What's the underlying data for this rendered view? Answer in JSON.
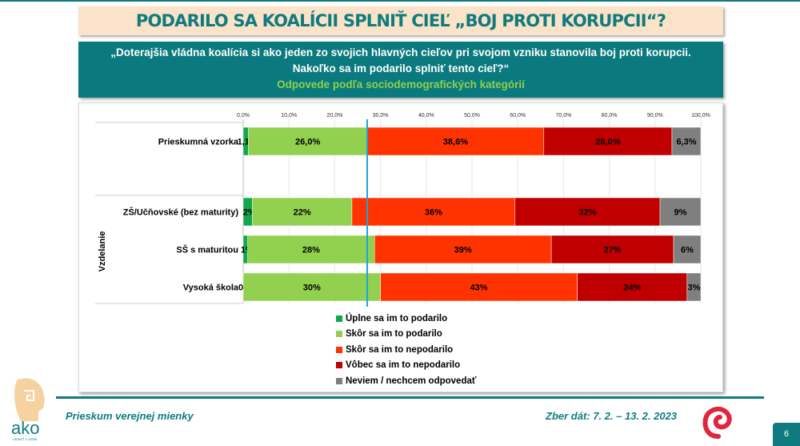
{
  "title": "PODARILO SA KOALÍCII SPLNIŤ CIEĽ „BOJ PROTI KORUPCII“?",
  "question_line1": "„Doterajšia vládna koalícia si ako jeden zo svojich hlavných cieľov pri svojom vzniku stanovila boj proti korupcii.",
  "question_line2": "Nakoľko sa im podarilo splniť tento cieľ?“",
  "subtitle": "Odpovede podľa sociodemografických kategórií",
  "footer": {
    "left": "Prieskum verejnej mienky",
    "right": "Zber dát: 7. 2. – 13. 2. 2023",
    "page": "6",
    "logo_text": "ako",
    "logo_tagline": "VEDIEŤ O SEBE"
  },
  "chart_data": {
    "type": "stacked-bar-horizontal",
    "xlim": [
      0,
      100
    ],
    "x_ticks": [
      "0,0%",
      "10,0%",
      "20,0%",
      "30,0%",
      "40,0%",
      "50,0%",
      "60,0%",
      "70,0%",
      "80,0%",
      "90,0%",
      "100,0%"
    ],
    "group_label": "Vzdelanie",
    "reference_line_value": 27.1,
    "legend_placement": "bottom",
    "series": [
      {
        "name": "Úplne sa im to podarilo",
        "color": "#12a84b"
      },
      {
        "name": "Skôr sa im to podarilo",
        "color": "#92d050"
      },
      {
        "name": "Skôr sa im to nepodarilo",
        "color": "#ff3300"
      },
      {
        "name": "Vôbec sa im to nepodarilo",
        "color": "#c00000"
      },
      {
        "name": "Neviem / nechcem odpovedať",
        "color": "#7f7f7f"
      }
    ],
    "rows": [
      {
        "label": "Prieskumná vzorka",
        "values": [
          1.1,
          26.0,
          38.6,
          28.0,
          6.3
        ],
        "labels": [
          "1,1%",
          "26,0%",
          "38,6%",
          "28,0%",
          "6,3%"
        ]
      },
      {
        "label": "ZŠ/Učňovské (bez maturity)",
        "values": [
          2,
          22,
          36,
          32,
          9
        ],
        "labels": [
          "2%",
          "22%",
          "36%",
          "32%",
          "9%"
        ]
      },
      {
        "label": "SŠ s maturitou",
        "values": [
          1,
          28,
          39,
          27,
          6
        ],
        "labels": [
          "1%",
          "28%",
          "39%",
          "27%",
          "6%"
        ]
      },
      {
        "label": "Vysoká škola",
        "values": [
          0,
          30,
          43,
          24,
          3
        ],
        "labels": [
          "0%",
          "30%",
          "43%",
          "24%",
          "3%"
        ]
      }
    ]
  }
}
